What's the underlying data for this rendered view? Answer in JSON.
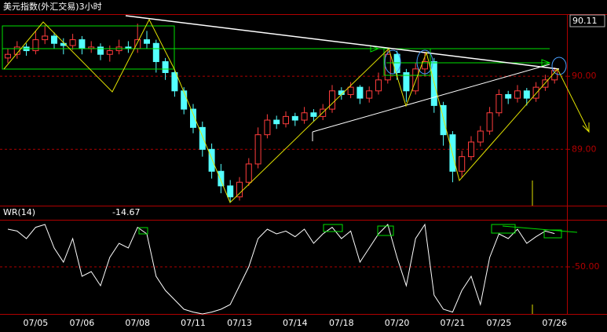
{
  "chart_data": [
    {
      "type": "candlestick",
      "title": "美元指数(外汇交易)3小时",
      "top_label": "90.11",
      "up_color": "#ff3c3c",
      "down_color": "#54ffff",
      "categories": [
        null,
        null,
        null,
        "07/05",
        null,
        null,
        null,
        null,
        "07/06",
        null,
        null,
        null,
        null,
        null,
        "07/08",
        null,
        null,
        null,
        null,
        null,
        "07/11",
        null,
        null,
        null,
        null,
        "07/13",
        null,
        null,
        null,
        null,
        null,
        "07/14",
        null,
        null,
        null,
        null,
        "07/18",
        null,
        null,
        null,
        null,
        null,
        "07/20",
        null,
        null,
        null,
        null,
        null,
        "07/21",
        null,
        null,
        null,
        null,
        "07/25",
        null,
        null,
        null,
        null,
        null,
        "07/26"
      ],
      "open": [
        90.25,
        90.3,
        90.4,
        90.35,
        90.5,
        90.55,
        90.45,
        90.42,
        90.5,
        90.38,
        90.4,
        90.3,
        90.35,
        90.4,
        90.38,
        90.5,
        90.45,
        90.2,
        90.05,
        89.8,
        89.55,
        89.3,
        89.0,
        88.7,
        88.5,
        88.35,
        88.55,
        88.8,
        89.2,
        89.4,
        89.35,
        89.45,
        89.4,
        89.5,
        89.45,
        89.55,
        89.8,
        89.75,
        89.85,
        89.7,
        89.8,
        89.95,
        90.3,
        90.05,
        89.8,
        90.1,
        90.2,
        89.6,
        89.2,
        88.7,
        88.9,
        89.1,
        89.25,
        89.5,
        89.75,
        89.7,
        89.8,
        89.7,
        89.85,
        89.95
      ],
      "high": [
        90.38,
        90.48,
        90.45,
        90.62,
        90.7,
        90.6,
        90.52,
        90.58,
        90.55,
        90.48,
        90.45,
        90.42,
        90.5,
        90.48,
        90.72,
        90.62,
        90.5,
        90.25,
        90.1,
        89.85,
        89.62,
        89.38,
        89.08,
        88.8,
        88.58,
        88.62,
        88.88,
        89.3,
        89.48,
        89.46,
        89.52,
        89.5,
        89.58,
        89.55,
        89.62,
        89.88,
        89.85,
        89.92,
        89.88,
        89.86,
        90.05,
        90.38,
        90.35,
        90.1,
        90.18,
        90.32,
        90.25,
        89.65,
        89.25,
        88.98,
        89.18,
        89.32,
        89.58,
        89.82,
        89.8,
        89.88,
        89.84,
        89.92,
        90.02,
        90.12
      ],
      "low": [
        90.18,
        90.24,
        90.28,
        90.3,
        90.44,
        90.38,
        90.3,
        90.36,
        90.3,
        90.32,
        90.22,
        90.2,
        90.3,
        90.32,
        90.32,
        90.38,
        90.05,
        89.95,
        89.72,
        89.48,
        89.22,
        88.9,
        88.6,
        88.4,
        88.27,
        88.3,
        88.5,
        88.74,
        89.15,
        89.28,
        89.3,
        89.32,
        89.35,
        89.38,
        89.4,
        89.5,
        89.68,
        89.7,
        89.62,
        89.64,
        89.75,
        89.9,
        89.95,
        89.65,
        89.75,
        90.0,
        89.5,
        89.05,
        88.55,
        88.62,
        88.85,
        89.04,
        89.2,
        89.45,
        89.62,
        89.64,
        89.6,
        89.65,
        89.8,
        89.9
      ],
      "close": [
        90.3,
        90.4,
        90.35,
        90.5,
        90.55,
        90.45,
        90.42,
        90.5,
        90.38,
        90.4,
        90.3,
        90.35,
        90.4,
        90.38,
        90.5,
        90.45,
        90.2,
        90.05,
        89.8,
        89.55,
        89.3,
        89.0,
        88.7,
        88.5,
        88.35,
        88.55,
        88.8,
        89.2,
        89.4,
        89.35,
        89.45,
        89.4,
        89.5,
        89.45,
        89.55,
        89.8,
        89.75,
        89.85,
        89.7,
        89.8,
        89.95,
        90.3,
        90.05,
        89.8,
        90.1,
        90.2,
        89.6,
        89.2,
        88.7,
        88.9,
        89.1,
        89.25,
        89.5,
        89.75,
        89.7,
        89.8,
        89.7,
        89.85,
        89.95,
        90.08
      ],
      "ylim": [
        88.23,
        90.85
      ],
      "yticks": [
        {
          "value": 90,
          "label": "90.00"
        },
        {
          "value": 89,
          "label": "89.00"
        }
      ],
      "grid": true
    },
    {
      "type": "line",
      "title": "WR(14)",
      "series": [
        {
          "color": "#ffffff",
          "values": [
            -10,
            -12,
            -20,
            -8,
            -5,
            -30,
            -45,
            -20,
            -60,
            -55,
            -70,
            -40,
            -25,
            -30,
            -8,
            -15,
            -60,
            -75,
            -85,
            -95,
            -98,
            -100,
            -98,
            -95,
            -90,
            -70,
            -50,
            -20,
            -10,
            -15,
            -12,
            -18,
            -10,
            -25,
            -15,
            -8,
            -20,
            -12,
            -45,
            -30,
            -15,
            -5,
            -40,
            -70,
            -20,
            -5,
            -80,
            -95,
            -98,
            -75,
            -60,
            -90,
            -40,
            -15,
            -20,
            -10,
            -25,
            -18,
            -12,
            -14.67
          ]
        }
      ],
      "ylim": [
        -100,
        0
      ],
      "yticks": [
        {
          "value": -50,
          "label": "-50.00"
        }
      ],
      "grid": true
    }
  ]
}
